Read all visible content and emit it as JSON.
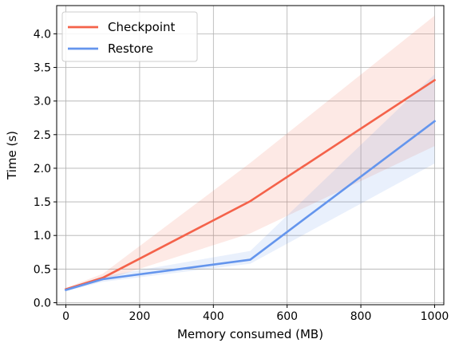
{
  "chart_data": {
    "type": "line",
    "xlabel": "Memory consumed (MB)",
    "ylabel": "Time (s)",
    "xlim": [
      -25,
      1025
    ],
    "ylim": [
      -0.03,
      4.42
    ],
    "xticks": [
      0,
      200,
      400,
      600,
      800,
      1000
    ],
    "yticks": [
      0.0,
      0.5,
      1.0,
      1.5,
      2.0,
      2.5,
      3.0,
      3.5,
      4.0
    ],
    "grid": true,
    "legend_position": "top-left",
    "series": [
      {
        "name": "Checkpoint",
        "color": "#f4624a",
        "x": [
          0,
          100,
          500,
          1000
        ],
        "y": [
          0.2,
          0.37,
          1.51,
          3.31
        ],
        "band_lower": [
          0.18,
          0.33,
          1.03,
          2.33
        ],
        "band_upper": [
          0.22,
          0.43,
          2.08,
          4.27
        ]
      },
      {
        "name": "Restore",
        "color": "#6495ed",
        "x": [
          0,
          100,
          500,
          1000
        ],
        "y": [
          0.19,
          0.35,
          0.64,
          2.7
        ],
        "band_lower": [
          0.17,
          0.31,
          0.58,
          2.07
        ],
        "band_upper": [
          0.21,
          0.39,
          0.77,
          3.4
        ]
      }
    ]
  }
}
